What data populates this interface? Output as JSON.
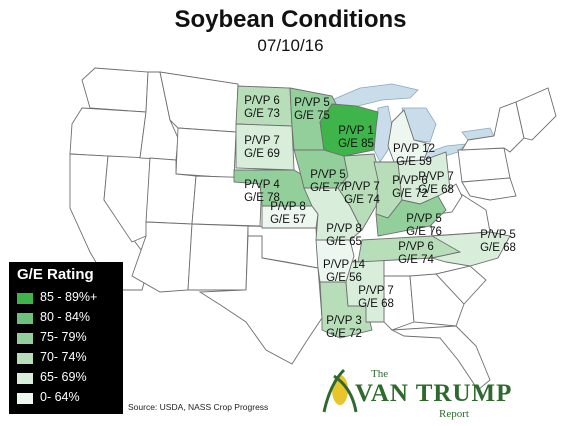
{
  "header": {
    "title": "Soybean Conditions",
    "date": "07/10/16"
  },
  "colors": {
    "lakes": "#c9dcea",
    "water_outline": "#8aa7bf",
    "land": "#ffffff",
    "border": "#6f6f6f",
    "tier_85_89": "#3fb44a",
    "tier_80_84": "#6cc27a",
    "tier_75_79": "#92cf9a",
    "tier_70_74": "#b7deb9",
    "tier_65_69": "#d8eedb",
    "tier_0_64": "#eef7ef",
    "brand_green": "#2e6a2e",
    "brand_yellow": "#e8c52a"
  },
  "states": [
    {
      "id": "ND",
      "pvp": "P/VP 6",
      "ge": "G/E 73",
      "tier": "tier_70_74"
    },
    {
      "id": "MN",
      "pvp": "P/VP 5",
      "ge": "G/E 75",
      "tier": "tier_75_79"
    },
    {
      "id": "SD",
      "pvp": "P/VP 7",
      "ge": "G/E 69",
      "tier": "tier_65_69"
    },
    {
      "id": "WI",
      "pvp": "P/VP 1",
      "ge": "G/E 85",
      "tier": "tier_85_89"
    },
    {
      "id": "MI",
      "pvp": "P/VP 12",
      "ge": "G/E 59",
      "tier": "tier_0_64"
    },
    {
      "id": "IA",
      "pvp": "P/VP 5",
      "ge": "G/E 77",
      "tier": "tier_75_79"
    },
    {
      "id": "NE",
      "pvp": "P/VP 4",
      "ge": "G/E 78",
      "tier": "tier_75_79"
    },
    {
      "id": "IL",
      "pvp": "P/VP 7",
      "ge": "G/E 74",
      "tier": "tier_70_74"
    },
    {
      "id": "IN",
      "pvp": "P/VP 6",
      "ge": "G/E 72",
      "tier": "tier_70_74"
    },
    {
      "id": "OH",
      "pvp": "P/VP 7",
      "ge": "G/E 68",
      "tier": "tier_65_69"
    },
    {
      "id": "KS",
      "pvp": "P/VP 8",
      "ge": "G/E 57",
      "tier": "tier_0_64"
    },
    {
      "id": "MO",
      "pvp": "P/VP 8",
      "ge": "G/E 65",
      "tier": "tier_65_69"
    },
    {
      "id": "KY",
      "pvp": "P/VP 5",
      "ge": "G/E 76",
      "tier": "tier_75_79"
    },
    {
      "id": "TN",
      "pvp": "P/VP 6",
      "ge": "G/E 74",
      "tier": "tier_70_74"
    },
    {
      "id": "NC",
      "pvp": "P/VP 5",
      "ge": "G/E 68",
      "tier": "tier_65_69"
    },
    {
      "id": "AR",
      "pvp": "P/VP 14",
      "ge": "G/E 56",
      "tier": "tier_0_64"
    },
    {
      "id": "MS",
      "pvp": "P/VP 7",
      "ge": "G/E 68",
      "tier": "tier_65_69"
    },
    {
      "id": "LA",
      "pvp": "P/VP 3",
      "ge": "G/E 72",
      "tier": "tier_70_74"
    }
  ],
  "legend": {
    "title": "G/E Rating",
    "items": [
      {
        "label": "85 - 89%+",
        "tier": "tier_85_89"
      },
      {
        "label": "80 - 84%",
        "tier": "tier_80_84"
      },
      {
        "label": "75- 79%",
        "tier": "tier_75_79"
      },
      {
        "label": "70- 74%",
        "tier": "tier_70_74"
      },
      {
        "label": "65- 69%",
        "tier": "tier_65_69"
      },
      {
        "label": "0- 64%",
        "tier": "tier_0_64"
      }
    ]
  },
  "source": "Source: USDA, NASS Crop Progress",
  "brand": {
    "the": "The",
    "name": "VAN TRUMP",
    "report": "Report"
  }
}
